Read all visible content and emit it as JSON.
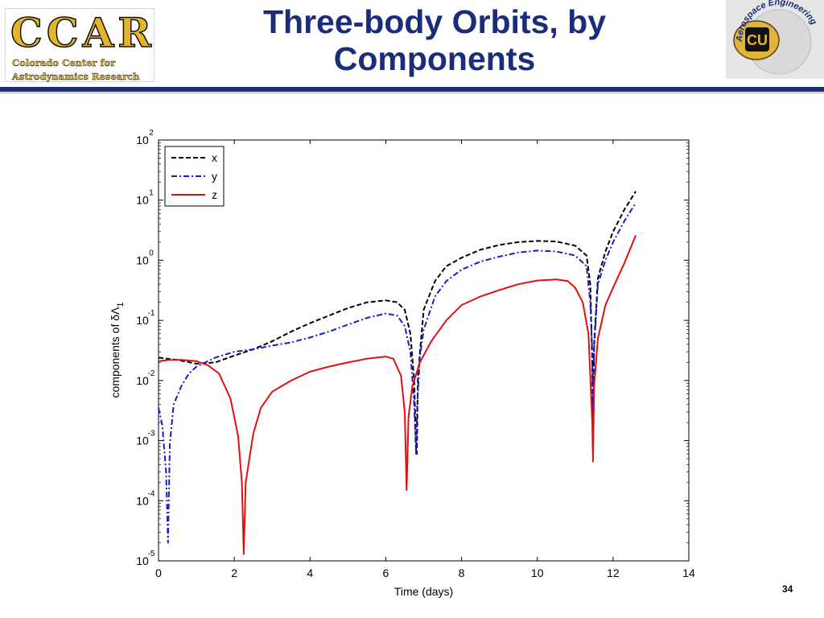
{
  "header": {
    "title_line1": "Three-body Orbits, by",
    "title_line2": "Components",
    "logo_left_big": "CCAR",
    "logo_left_sub1": "Colorado Center for",
    "logo_left_sub2": "Astrodynamics Research",
    "logo_right_text": "Aerospace Engineering",
    "logo_right_monogram": "CU",
    "colors": {
      "title": "#1a2c7a",
      "rule": "#1a2c7a",
      "logo_gold": "#e4b52a"
    }
  },
  "footer": {
    "page_number": "34"
  },
  "chart_data": {
    "type": "line",
    "xlabel": "Time (days)",
    "ylabel_prefix": "components of ",
    "ylabel_delta": "δ",
    "ylabel_lambda": "Λ",
    "ylabel_subscript": "1",
    "xlim": [
      0,
      14
    ],
    "ylim_log10": [
      -5,
      2
    ],
    "y_scale": "log",
    "xticks": [
      0,
      2,
      4,
      6,
      8,
      10,
      12,
      14
    ],
    "xtick_labels": [
      "0",
      "2",
      "4",
      "6",
      "8",
      "10",
      "12",
      "14"
    ],
    "ytick_exponents": [
      -5,
      -4,
      -3,
      -2,
      -1,
      0,
      1,
      2
    ],
    "ytick_base": "10",
    "ytick_sup_labels": [
      "-5",
      "-4",
      "-3",
      "-2",
      "-1",
      "0",
      "1",
      "2"
    ],
    "grid": false,
    "legend_position": "top-left",
    "series": [
      {
        "name": "x",
        "color": "#000000",
        "dash": "dashed",
        "points": [
          [
            0,
            0.024
          ],
          [
            0.5,
            0.022
          ],
          [
            1.0,
            0.019
          ],
          [
            1.5,
            0.02
          ],
          [
            2.0,
            0.026
          ],
          [
            2.5,
            0.033
          ],
          [
            3.0,
            0.045
          ],
          [
            3.5,
            0.065
          ],
          [
            4.0,
            0.09
          ],
          [
            4.5,
            0.12
          ],
          [
            5.0,
            0.16
          ],
          [
            5.5,
            0.2
          ],
          [
            6.0,
            0.215
          ],
          [
            6.3,
            0.2
          ],
          [
            6.5,
            0.15
          ],
          [
            6.65,
            0.06
          ],
          [
            6.75,
            0.01
          ],
          [
            6.8,
            0.0007
          ],
          [
            6.82,
            0.0006
          ],
          [
            6.85,
            0.012
          ],
          [
            7.0,
            0.15
          ],
          [
            7.3,
            0.45
          ],
          [
            7.6,
            0.8
          ],
          [
            8.0,
            1.1
          ],
          [
            8.5,
            1.5
          ],
          [
            9.0,
            1.8
          ],
          [
            9.5,
            2.0
          ],
          [
            10.0,
            2.1
          ],
          [
            10.5,
            2.05
          ],
          [
            11.0,
            1.75
          ],
          [
            11.3,
            1.2
          ],
          [
            11.4,
            0.4
          ],
          [
            11.45,
            0.02
          ],
          [
            11.47,
            0.0008
          ],
          [
            11.5,
            0.04
          ],
          [
            11.6,
            0.5
          ],
          [
            11.8,
            1.4
          ],
          [
            12.0,
            3.0
          ],
          [
            12.3,
            7.0
          ],
          [
            12.6,
            14.0
          ]
        ]
      },
      {
        "name": "y",
        "color": "#1a1ad0",
        "dash": "dashdot",
        "points": [
          [
            0,
            0.0035
          ],
          [
            0.1,
            0.0018
          ],
          [
            0.2,
            0.0003
          ],
          [
            0.25,
            2e-05
          ],
          [
            0.3,
            0.0009
          ],
          [
            0.4,
            0.004
          ],
          [
            0.6,
            0.008
          ],
          [
            0.8,
            0.013
          ],
          [
            1.0,
            0.017
          ],
          [
            1.5,
            0.024
          ],
          [
            2.0,
            0.03
          ],
          [
            2.5,
            0.033
          ],
          [
            3.0,
            0.038
          ],
          [
            3.5,
            0.043
          ],
          [
            4.0,
            0.052
          ],
          [
            4.5,
            0.065
          ],
          [
            5.0,
            0.085
          ],
          [
            5.5,
            0.11
          ],
          [
            6.0,
            0.13
          ],
          [
            6.3,
            0.12
          ],
          [
            6.5,
            0.08
          ],
          [
            6.65,
            0.03
          ],
          [
            6.75,
            0.004
          ],
          [
            6.8,
            0.0006
          ],
          [
            6.83,
            0.004
          ],
          [
            6.9,
            0.025
          ],
          [
            7.0,
            0.07
          ],
          [
            7.3,
            0.25
          ],
          [
            7.6,
            0.45
          ],
          [
            8.0,
            0.7
          ],
          [
            8.5,
            0.95
          ],
          [
            9.0,
            1.15
          ],
          [
            9.5,
            1.35
          ],
          [
            10.0,
            1.45
          ],
          [
            10.5,
            1.4
          ],
          [
            11.0,
            1.2
          ],
          [
            11.3,
            0.8
          ],
          [
            11.4,
            0.2
          ],
          [
            11.45,
            0.03
          ],
          [
            11.47,
            0.003
          ],
          [
            11.5,
            0.035
          ],
          [
            11.6,
            0.4
          ],
          [
            11.8,
            1.0
          ],
          [
            12.0,
            2.0
          ],
          [
            12.3,
            4.5
          ],
          [
            12.6,
            9.0
          ]
        ]
      },
      {
        "name": "z",
        "color": "#e01010",
        "dash": "solid",
        "points": [
          [
            0,
            0.021
          ],
          [
            0.3,
            0.022
          ],
          [
            0.6,
            0.022
          ],
          [
            1.0,
            0.021
          ],
          [
            1.3,
            0.018
          ],
          [
            1.6,
            0.013
          ],
          [
            1.9,
            0.005
          ],
          [
            2.1,
            0.0012
          ],
          [
            2.2,
            0.0002
          ],
          [
            2.25,
            1.3e-05
          ],
          [
            2.3,
            0.0002
          ],
          [
            2.5,
            0.0013
          ],
          [
            2.7,
            0.0035
          ],
          [
            3.0,
            0.0065
          ],
          [
            3.5,
            0.01
          ],
          [
            4.0,
            0.014
          ],
          [
            4.5,
            0.017
          ],
          [
            5.0,
            0.02
          ],
          [
            5.5,
            0.023
          ],
          [
            6.0,
            0.025
          ],
          [
            6.2,
            0.023
          ],
          [
            6.4,
            0.012
          ],
          [
            6.5,
            0.003
          ],
          [
            6.55,
            0.00015
          ],
          [
            6.6,
            0.0025
          ],
          [
            6.7,
            0.008
          ],
          [
            6.9,
            0.02
          ],
          [
            7.2,
            0.045
          ],
          [
            7.6,
            0.1
          ],
          [
            8.0,
            0.18
          ],
          [
            8.5,
            0.25
          ],
          [
            9.0,
            0.32
          ],
          [
            9.5,
            0.4
          ],
          [
            10.0,
            0.46
          ],
          [
            10.5,
            0.48
          ],
          [
            10.8,
            0.45
          ],
          [
            11.0,
            0.35
          ],
          [
            11.2,
            0.2
          ],
          [
            11.35,
            0.06
          ],
          [
            11.45,
            0.002
          ],
          [
            11.47,
            0.00045
          ],
          [
            11.5,
            0.008
          ],
          [
            11.6,
            0.05
          ],
          [
            11.8,
            0.18
          ],
          [
            12.0,
            0.35
          ],
          [
            12.3,
            0.9
          ],
          [
            12.6,
            2.6
          ]
        ]
      }
    ]
  }
}
